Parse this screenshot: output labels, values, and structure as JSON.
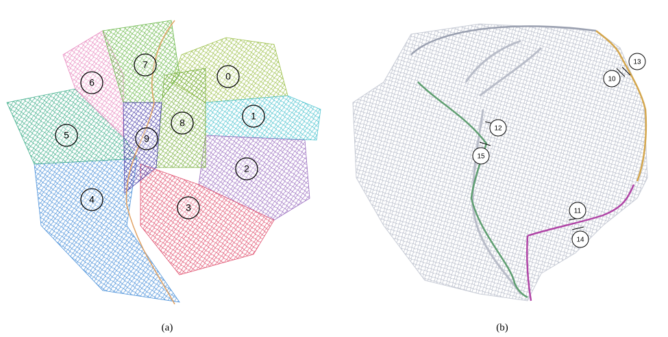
{
  "panels": [
    {
      "caption": "(a)",
      "labels": [
        "0",
        "1",
        "2",
        "3",
        "4",
        "5",
        "6",
        "7",
        "8",
        "9"
      ]
    },
    {
      "caption": "(b)",
      "labels": [
        "10",
        "11",
        "12",
        "13",
        "14",
        "15"
      ]
    }
  ]
}
